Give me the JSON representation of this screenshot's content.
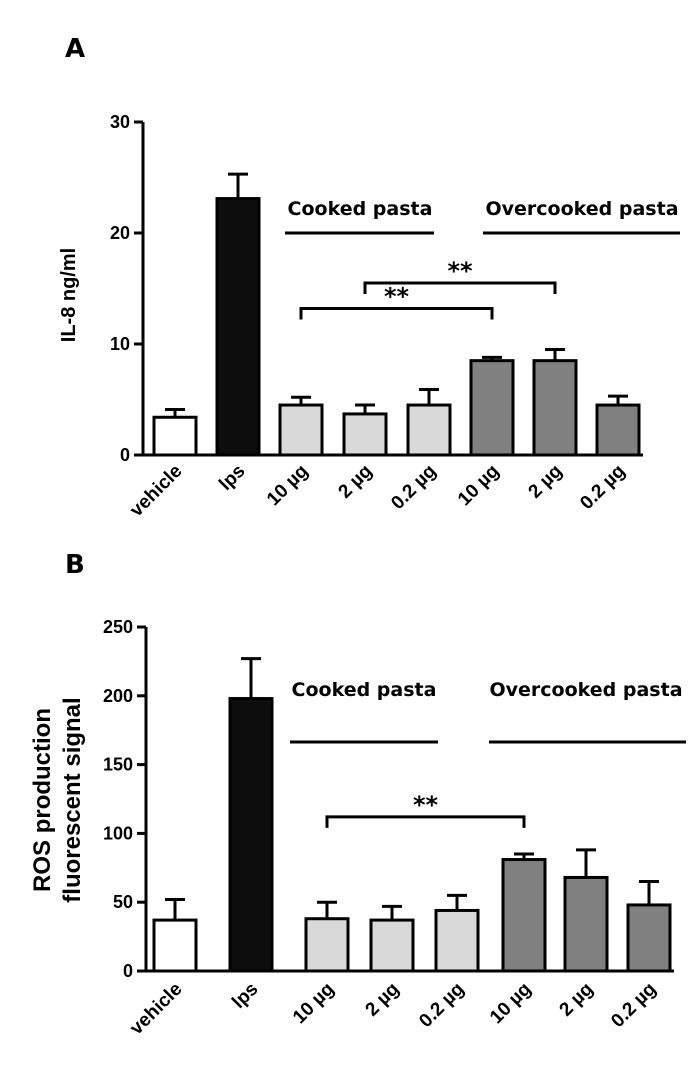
{
  "chart_data": [
    {
      "panel": "A",
      "type": "bar",
      "categories": [
        "vehicle",
        "lps",
        "10 µg",
        "2 µg",
        "0.2 µg",
        "10 µg",
        "2 µg",
        "0.2 µg"
      ],
      "values": [
        3.4,
        23.1,
        4.5,
        3.7,
        4.5,
        8.5,
        8.5,
        4.5
      ],
      "errors": [
        0.7,
        2.2,
        0.7,
        0.8,
        1.4,
        0.3,
        1.0,
        0.8
      ],
      "colors": [
        "#ffffff",
        "#0d0d0d",
        "#d9d9d9",
        "#d9d9d9",
        "#d9d9d9",
        "#808080",
        "#808080",
        "#808080"
      ],
      "ylabel": "IL-8 ng/ml",
      "ylim": [
        0,
        30
      ],
      "yticks": [
        0,
        10,
        20,
        30
      ],
      "groups": [
        {
          "label": "Cooked pasta",
          "from": 2,
          "to": 4
        },
        {
          "label": "Overcooked pasta",
          "from": 5,
          "to": 7
        }
      ],
      "significance": [
        {
          "from": 2,
          "to": 5,
          "label": "**",
          "y": 13.2
        },
        {
          "from": 3,
          "to": 6,
          "label": "**",
          "y": 15.5
        }
      ]
    },
    {
      "panel": "B",
      "type": "bar",
      "categories": [
        "vehicle",
        "lps",
        "10 µg",
        "2 µg",
        "0.2 µg",
        "10 µg",
        "2 µg",
        "0.2 µg"
      ],
      "values": [
        37,
        198,
        38,
        37,
        44,
        81,
        68,
        48
      ],
      "errors": [
        15,
        29,
        12,
        10,
        11,
        4,
        20,
        17
      ],
      "colors": [
        "#ffffff",
        "#0d0d0d",
        "#d9d9d9",
        "#d9d9d9",
        "#d9d9d9",
        "#808080",
        "#808080",
        "#808080"
      ],
      "ylabel_lines": [
        "ROS production",
        "fluorescent signal"
      ],
      "ylim": [
        0,
        250
      ],
      "yticks": [
        0,
        50,
        100,
        150,
        200,
        250
      ],
      "groups": [
        {
          "label": "Cooked pasta",
          "from": 2,
          "to": 4
        },
        {
          "label": "Overcooked pasta",
          "from": 5,
          "to": 7
        }
      ],
      "significance": [
        {
          "from": 2,
          "to": 5,
          "label": "**",
          "y": 112
        }
      ]
    }
  ]
}
